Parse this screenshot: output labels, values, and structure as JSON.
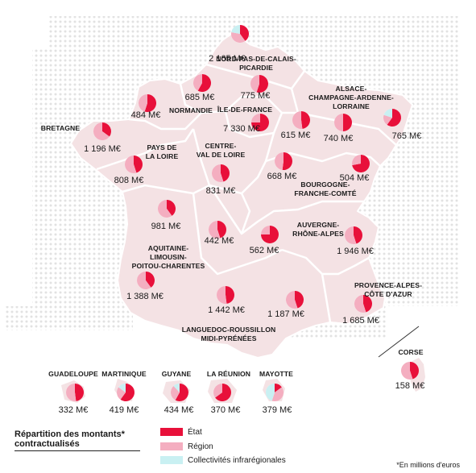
{
  "colors": {
    "etat": "#e8103a",
    "region": "#f4aec0",
    "collectivites": "#c9f0f2",
    "land": "#f4e2e4",
    "border": "#ffffff",
    "dots": "#e4e4e4"
  },
  "regions": [
    {
      "name": "NORD-PAS-DE-CALAIS-\nPICARDIE",
      "value": "2 165 M€",
      "shares": [
        0.4,
        0.38,
        0.22
      ]
    },
    {
      "name": "",
      "value": "775 M€",
      "shares": [
        0.55,
        0.45,
        0
      ]
    },
    {
      "name": "",
      "value": "685 M€",
      "shares": [
        0.58,
        0.42,
        0
      ]
    },
    {
      "name": "NORMANDIE",
      "value": "484 M€",
      "shares": [
        0.55,
        0.45,
        0
      ]
    },
    {
      "name": "ÎLE-DE-FRANCE",
      "value": "7 330 M€",
      "shares": [
        0.75,
        0.25,
        0
      ]
    },
    {
      "name": "ALSACE-\nCHAMPAGNE-ARDENNE-\nLORRAINE",
      "value": "765 M€",
      "shares": [
        0.6,
        0.2,
        0.2
      ]
    },
    {
      "name": "",
      "value": "615 M€",
      "shares": [
        0.48,
        0.52,
        0
      ]
    },
    {
      "name": "",
      "value": "740 M€",
      "shares": [
        0.5,
        0.5,
        0
      ]
    },
    {
      "name": "BRETAGNE",
      "value": "1 196 M€",
      "shares": [
        0.35,
        0.65,
        0
      ]
    },
    {
      "name": "PAYS DE\nLA LOIRE",
      "value": "808 M€",
      "shares": [
        0.45,
        0.55,
        0
      ]
    },
    {
      "name": "CENTRE-\nVAL DE LOIRE",
      "value": "831 M€",
      "shares": [
        0.45,
        0.55,
        0
      ]
    },
    {
      "name": "",
      "value": "668 M€",
      "shares": [
        0.52,
        0.48,
        0
      ]
    },
    {
      "name": "BOURGOGNE-\nFRANCHE-COMTÉ",
      "value": "504 M€",
      "shares": [
        0.72,
        0.28,
        0
      ]
    },
    {
      "name": "",
      "value": "981 M€",
      "shares": [
        0.4,
        0.6,
        0
      ]
    },
    {
      "name": "",
      "value": "442 M€",
      "shares": [
        0.45,
        0.55,
        0
      ]
    },
    {
      "name": "AUVERGNE-\nRHÔNE-ALPES",
      "value": "562 M€",
      "shares": [
        0.75,
        0.25,
        0
      ]
    },
    {
      "name": "",
      "value": "1 946 M€",
      "shares": [
        0.45,
        0.55,
        0
      ]
    },
    {
      "name": "AQUITAINE-\nLIMOUSIN-\nPOITOU-CHARENTES",
      "value": "1 388 M€",
      "shares": [
        0.4,
        0.6,
        0
      ]
    },
    {
      "name": "",
      "value": "1 442 M€",
      "shares": [
        0.48,
        0.52,
        0
      ]
    },
    {
      "name": "",
      "value": "1 187 M€",
      "shares": [
        0.45,
        0.55,
        0
      ]
    },
    {
      "name": "LANGUEDOC-ROUSSILLON\nMIDI-PYRÉNÉES",
      "value": "",
      "shares": []
    },
    {
      "name": "PROVENCE-ALPES-\nCÔTE D'AZUR",
      "value": "1 685 M€",
      "shares": [
        0.45,
        0.55,
        0
      ]
    },
    {
      "name": "CORSE",
      "value": "158 M€",
      "shares": [
        0.45,
        0.55,
        0
      ]
    }
  ],
  "overseas": [
    {
      "name": "GUADELOUPE",
      "value": "332 M€",
      "shares": [
        0.48,
        0.52,
        0
      ]
    },
    {
      "name": "MARTINIQUE",
      "value": "419 M€",
      "shares": [
        0.6,
        0.25,
        0.15
      ]
    },
    {
      "name": "GUYANE",
      "value": "434 M€",
      "shares": [
        0.58,
        0.3,
        0.12
      ]
    },
    {
      "name": "LA RÉUNION",
      "value": "370 M€",
      "shares": [
        0.65,
        0.35,
        0
      ]
    },
    {
      "name": "MAYOTTE",
      "value": "379 M€",
      "shares": [
        0.15,
        0.4,
        0.45
      ]
    }
  ],
  "legend": {
    "title": "Répartition des montants*\ncontractualisés",
    "items": [
      "État",
      "Région",
      "Collectivités infrarégionales"
    ],
    "footnote": "*En millions d'euros"
  }
}
